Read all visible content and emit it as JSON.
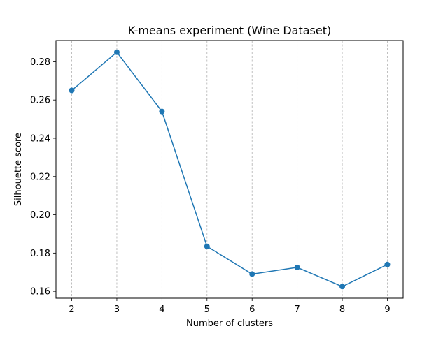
{
  "chart_data": {
    "type": "line",
    "title": "K-means experiment (Wine Dataset)",
    "xlabel": "Number of clusters",
    "ylabel": "Silhouette score",
    "x": [
      2,
      3,
      4,
      5,
      6,
      7,
      8,
      9
    ],
    "series": [
      {
        "values": [
          0.265,
          0.285,
          0.254,
          0.1835,
          0.169,
          0.1725,
          0.1625,
          0.174
        ],
        "color": "#1f77b4",
        "marker": "circle"
      }
    ],
    "xticks": [
      "2",
      "3",
      "4",
      "5",
      "6",
      "7",
      "8",
      "9"
    ],
    "yticks": [
      "0.16",
      "0.18",
      "0.20",
      "0.22",
      "0.24",
      "0.26",
      "0.28"
    ],
    "ylim": [
      0.1564,
      0.2911
    ],
    "xlim": [
      1.65,
      9.35
    ],
    "grid": "vertical-dashed"
  }
}
